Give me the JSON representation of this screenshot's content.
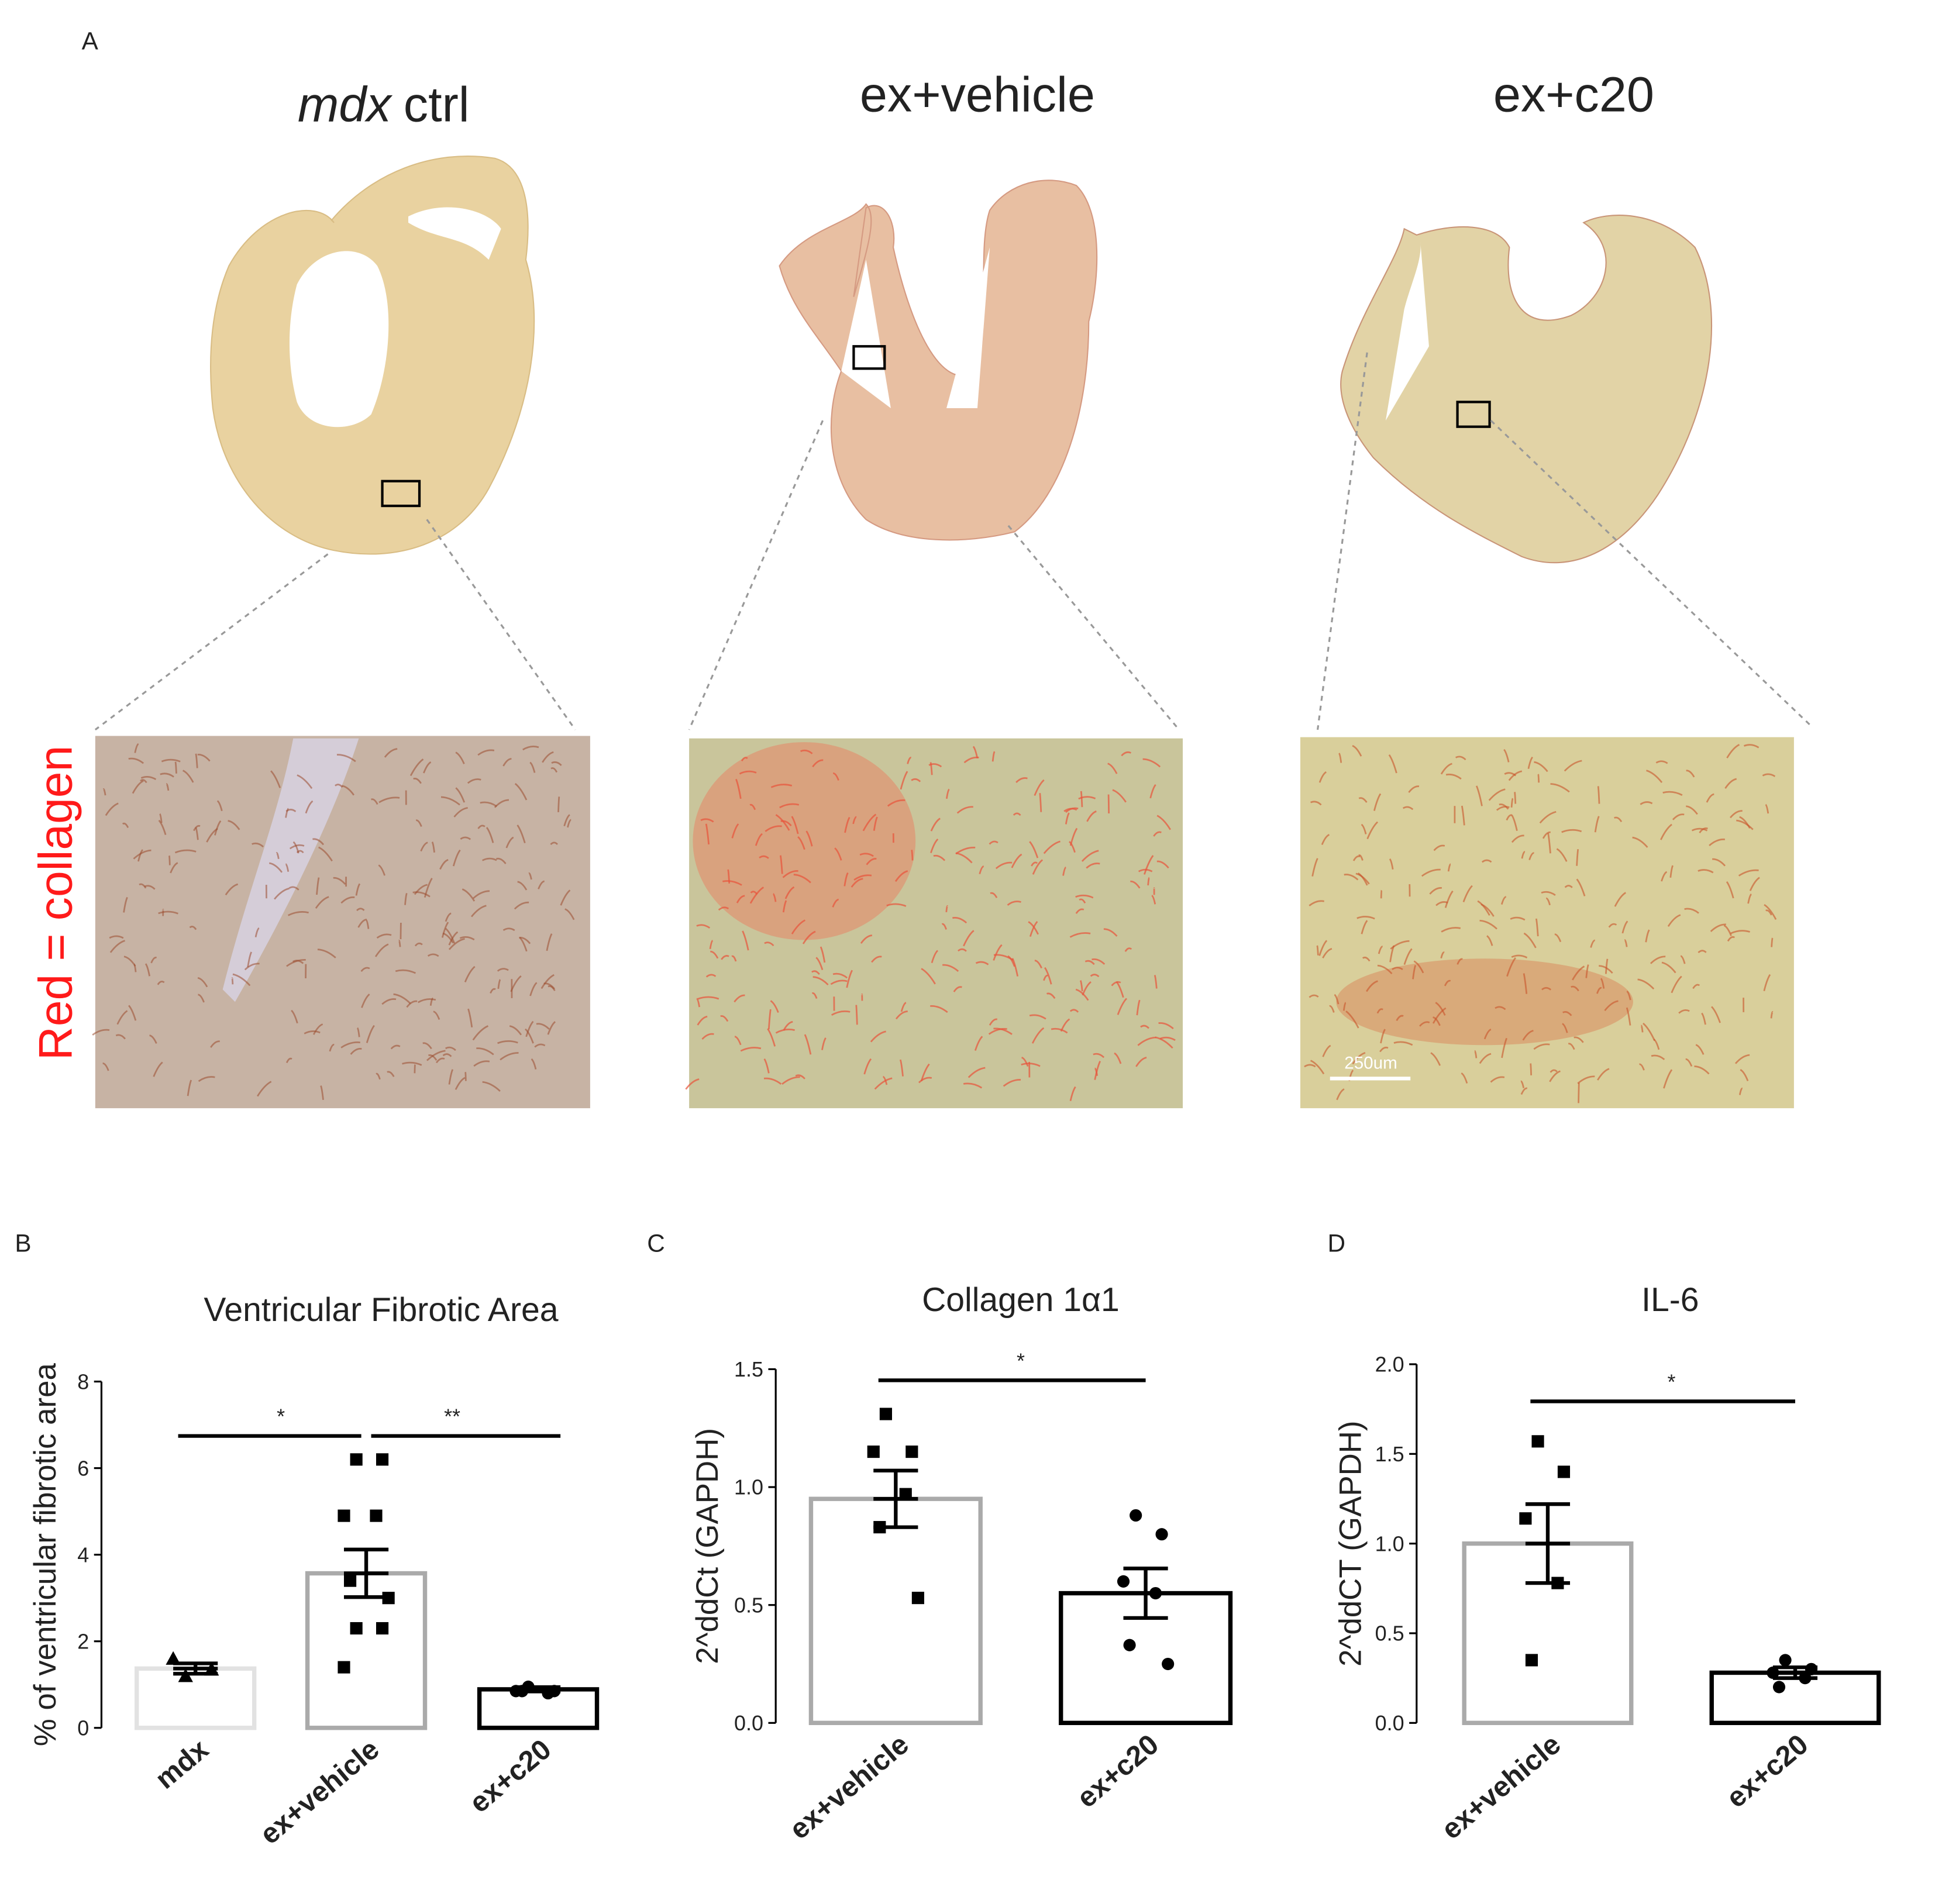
{
  "panel_a": {
    "label": "A",
    "titles": [
      {
        "italic": "mdx",
        "plain": "ctrl"
      },
      {
        "plain": "ex+vehicle"
      },
      {
        "plain": "ex+c20"
      }
    ],
    "stain_note": "Red = collagen",
    "scale_bar": "250um"
  },
  "chart_data": [
    {
      "type": "bar",
      "panel": "B",
      "title": "Ventricular Fibrotic Area",
      "y_label": "% of ventricular fibrotic area",
      "categories": [
        "mdx",
        "ex+vehicle",
        "ex+c20"
      ],
      "values": [
        1.37,
        3.57,
        0.89
      ],
      "errors": [
        0.12,
        0.55,
        0.05
      ],
      "points": [
        [
          1.2,
          1.35,
          1.6
        ],
        [
          6.2,
          6.2,
          4.9,
          4.9,
          3.4,
          3.0,
          2.3,
          2.3,
          1.4
        ],
        [
          0.95,
          0.85,
          0.85,
          0.8,
          0.85
        ]
      ],
      "colors": [
        "#e2e2e2",
        "#aaaaaa",
        "#000000"
      ],
      "markers": [
        "triangle",
        "square",
        "circle"
      ],
      "significance": [
        {
          "label": "*",
          "between": [
            "mdx",
            "ex+vehicle"
          ]
        },
        {
          "label": "**",
          "between": [
            "ex+vehicle",
            "ex+c20"
          ]
        }
      ],
      "ylim": [
        0,
        8
      ],
      "yticks": [
        0,
        2,
        4,
        6,
        8
      ]
    },
    {
      "type": "bar",
      "panel": "C",
      "title": "Collagen 1α1",
      "y_label": "2^ddCt (GAPDH)",
      "categories": [
        "ex+vehicle",
        "ex+c20"
      ],
      "values": [
        0.95,
        0.55
      ],
      "errors": [
        0.12,
        0.105
      ],
      "points": [
        [
          1.31,
          1.15,
          1.15,
          0.97,
          0.83,
          0.53
        ],
        [
          0.88,
          0.8,
          0.6,
          0.55,
          0.33,
          0.25
        ]
      ],
      "colors": [
        "#aaaaaa",
        "#000000"
      ],
      "markers": [
        "square",
        "circle"
      ],
      "significance": [
        {
          "label": "*",
          "between": [
            "ex+vehicle",
            "ex+c20"
          ]
        }
      ],
      "ylim": [
        0,
        1.5
      ],
      "yticks": [
        {
          "value": 0,
          "label": "0.0"
        },
        {
          "value": 0.5,
          "label": "0.5"
        },
        {
          "value": 1,
          "label": "1.0"
        },
        1.5
      ]
    },
    {
      "type": "bar",
      "panel": "D",
      "title": "IL-6",
      "y_label": "2^ddCT (GAPDH)",
      "categories": [
        "ex+vehicle",
        "ex+c20"
      ],
      "values": [
        1.0,
        0.28
      ],
      "errors": [
        0.22,
        0.03
      ],
      "points": [
        [
          1.57,
          1.4,
          1.14,
          0.78,
          0.35
        ],
        [
          0.35,
          0.3,
          0.28,
          0.25,
          0.2
        ]
      ],
      "colors": [
        "#aaaaaa",
        "#000000"
      ],
      "markers": [
        "square",
        "circle"
      ],
      "significance": [
        {
          "label": "*",
          "between": [
            "ex+vehicle",
            "ex+c20"
          ]
        }
      ],
      "ylim": [
        0,
        2
      ],
      "yticks": [
        {
          "value": 0,
          "label": "0.0"
        },
        {
          "value": 0.5,
          "label": "0.5"
        },
        {
          "value": 1,
          "label": "1.0"
        },
        1.5,
        {
          "value": 2,
          "label": "2.0"
        }
      ]
    }
  ]
}
